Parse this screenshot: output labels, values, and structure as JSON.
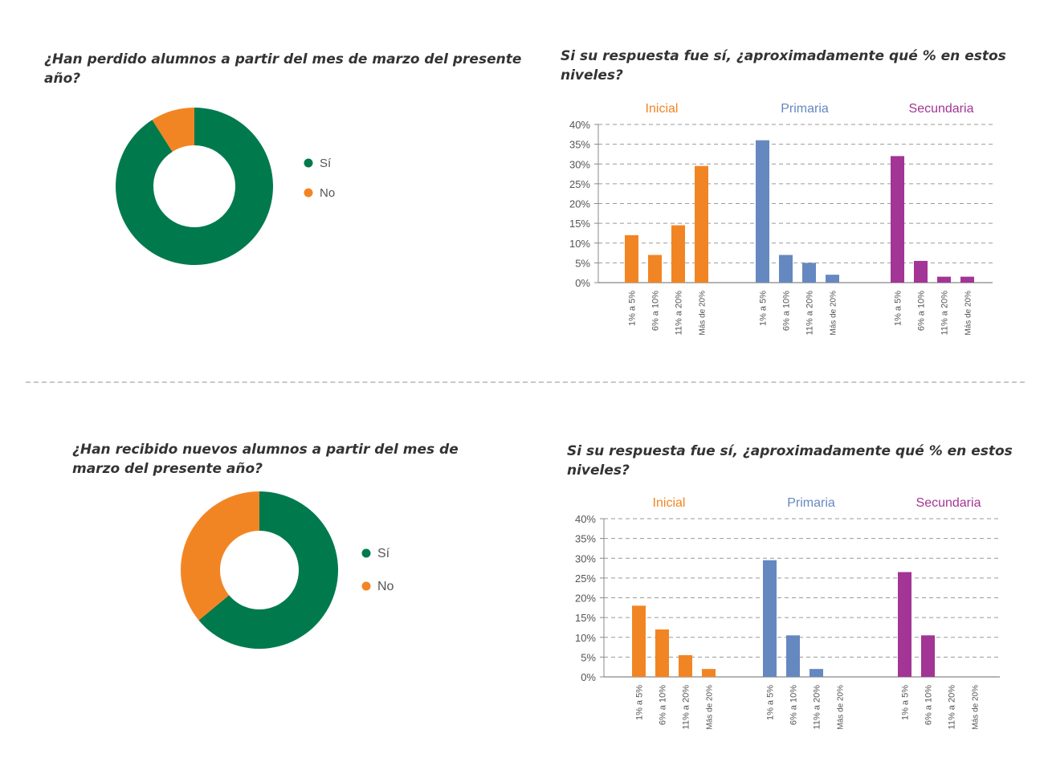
{
  "sections": [
    {
      "question": "¿Han perdido alumnos a partir del mes de marzo del presente año?",
      "bar_title": "Si su respuesta fue sí, ¿aproximadamente qué % en estos niveles?"
    },
    {
      "question": "¿Han recibido nuevos alumnos a partir del mes de marzo del presente año?",
      "bar_title": "Si su respuesta fue sí, ¿aproximadamente qué % en estos niveles?"
    }
  ],
  "colors": {
    "si": "#007a4d",
    "no": "#f28523",
    "inicial": "#f28523",
    "primaria": "#6688c0",
    "secundaria": "#a23595",
    "grid": "#999999",
    "text": "#555555"
  },
  "chart_data": [
    {
      "type": "pie",
      "variant": "donut",
      "labels": [
        "Sí",
        "No"
      ],
      "values": [
        91,
        9
      ],
      "legend": "right"
    },
    {
      "type": "bar",
      "groups": [
        "Inicial",
        "Primaria",
        "Secundaria"
      ],
      "categories": [
        "1% a 5%",
        "6% a 10%",
        "11% a 20%",
        "Más de 20%"
      ],
      "series": [
        {
          "name": "Inicial",
          "values": [
            12,
            7,
            14.5,
            29.5
          ]
        },
        {
          "name": "Primaria",
          "values": [
            36,
            7,
            5,
            2
          ]
        },
        {
          "name": "Secundaria",
          "values": [
            32,
            5.5,
            1.5,
            1.5
          ]
        }
      ],
      "yticks": [
        "0%",
        "5%",
        "10%",
        "15%",
        "20%",
        "25%",
        "30%",
        "35%",
        "40%"
      ],
      "ylim": [
        0,
        40
      ],
      "grid": true
    },
    {
      "type": "pie",
      "variant": "donut",
      "labels": [
        "Sí",
        "No"
      ],
      "values": [
        64,
        36
      ],
      "legend": "right"
    },
    {
      "type": "bar",
      "groups": [
        "Inicial",
        "Primaria",
        "Secundaria"
      ],
      "categories": [
        "1% a 5%",
        "6% a 10%",
        "11% a 20%",
        "Más de 20%"
      ],
      "series": [
        {
          "name": "Inicial",
          "values": [
            18,
            12,
            5.5,
            2
          ]
        },
        {
          "name": "Primaria",
          "values": [
            29.5,
            10.5,
            2,
            0
          ]
        },
        {
          "name": "Secundaria",
          "values": [
            26.5,
            10.5,
            0,
            0
          ]
        }
      ],
      "yticks": [
        "0%",
        "5%",
        "10%",
        "15%",
        "20%",
        "25%",
        "30%",
        "35%",
        "40%"
      ],
      "ylim": [
        0,
        40
      ],
      "grid": true
    }
  ]
}
